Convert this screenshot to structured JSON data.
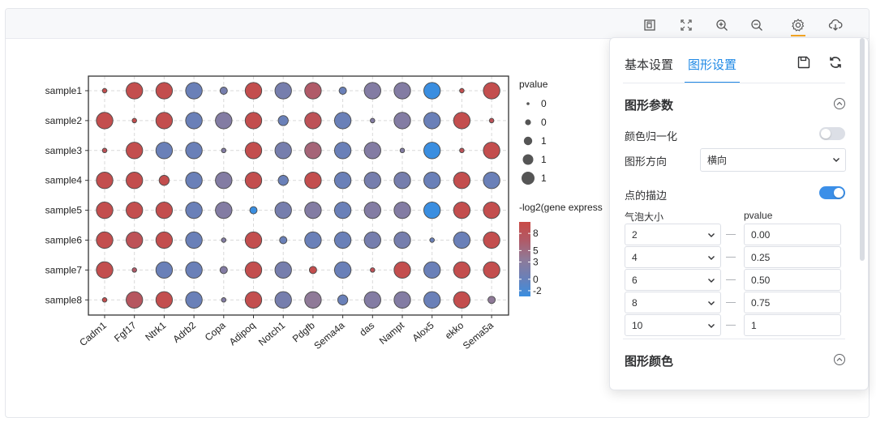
{
  "toolbar": {
    "icons": [
      "fit-view-icon",
      "fullscreen-icon",
      "zoom-in-icon",
      "zoom-out-icon",
      "gear-icon",
      "download-icon"
    ],
    "active": "gear-icon"
  },
  "chart_data": {
    "type": "scatter",
    "subtype": "bubble-matrix",
    "x_categories": [
      "Cadm1",
      "Fgf17",
      "Ntrk1",
      "Adrb2",
      "Copa",
      "Adipoq",
      "Notch1",
      "Pdgfb",
      "Sema4a",
      "das",
      "Nampt",
      "Alox5",
      "ekko",
      "Sema5a"
    ],
    "y_categories": [
      "sample1",
      "sample2",
      "sample3",
      "sample4",
      "sample5",
      "sample6",
      "sample7",
      "sample8"
    ],
    "size_legend": {
      "title": "pvalue",
      "labels": [
        "0",
        "0",
        "1",
        "1",
        "1"
      ],
      "sizes": [
        2,
        4,
        6,
        8,
        10
      ]
    },
    "color_legend": {
      "title": "-log2(gene express",
      "ticks": [
        "8",
        "5",
        "3",
        "0",
        "-2"
      ],
      "tick_values": [
        8,
        5,
        3,
        0,
        -2
      ],
      "range": [
        -3,
        10
      ],
      "colors": [
        "#3a8ee0",
        "#6a80b8",
        "#8f7a98",
        "#b05a68",
        "#c94a45"
      ]
    },
    "grid": true,
    "size_by_pvalue_bins": {
      "2": 0.0,
      "4": 0.25,
      "6": 0.5,
      "8": 0.75,
      "10": 1
    },
    "size_matrix": [
      [
        2,
        8,
        8,
        8,
        4,
        8,
        8,
        8,
        4,
        8,
        8,
        8,
        2,
        8
      ],
      [
        8,
        2,
        8,
        8,
        8,
        8,
        6,
        8,
        8,
        2,
        8,
        8,
        8,
        2
      ],
      [
        2,
        8,
        8,
        8,
        2,
        8,
        8,
        8,
        8,
        8,
        2,
        8,
        2,
        8
      ],
      [
        8,
        8,
        6,
        8,
        8,
        8,
        6,
        8,
        8,
        8,
        8,
        8,
        8,
        8
      ],
      [
        8,
        8,
        8,
        8,
        8,
        4,
        8,
        8,
        8,
        8,
        8,
        8,
        8,
        8
      ],
      [
        8,
        8,
        8,
        8,
        2,
        8,
        4,
        8,
        8,
        8,
        8,
        2,
        8,
        8
      ],
      [
        8,
        2,
        8,
        8,
        4,
        8,
        8,
        4,
        8,
        2,
        8,
        8,
        8,
        8
      ],
      [
        2,
        8,
        8,
        8,
        2,
        8,
        8,
        8,
        6,
        8,
        8,
        8,
        8,
        4
      ]
    ],
    "color_matrix": [
      [
        9,
        9,
        9,
        0,
        1,
        9,
        1,
        6,
        0,
        2,
        2,
        -3,
        9,
        9
      ],
      [
        9,
        9,
        9,
        0,
        2,
        9,
        0,
        8,
        0,
        2,
        2,
        0,
        9,
        8
      ],
      [
        8,
        9,
        0,
        0,
        2,
        9,
        1,
        5,
        0,
        2,
        2,
        -3,
        8,
        9
      ],
      [
        9,
        9,
        9,
        0,
        2,
        9,
        0,
        9,
        0,
        1,
        1,
        0,
        9,
        0
      ],
      [
        9,
        9,
        9,
        0,
        2,
        -3,
        1,
        2,
        0,
        2,
        2,
        -3,
        9,
        9
      ],
      [
        9,
        8,
        9,
        0,
        2,
        9,
        0,
        0,
        0,
        1,
        1,
        0,
        0,
        9
      ],
      [
        9,
        6,
        0,
        0,
        2,
        9,
        1,
        9,
        0,
        8,
        9,
        0,
        9,
        9
      ],
      [
        9,
        7,
        9,
        0,
        2,
        9,
        1,
        3,
        0,
        2,
        2,
        0,
        9,
        3
      ]
    ]
  },
  "panel": {
    "tabs": [
      {
        "label": "基本设置",
        "active": false
      },
      {
        "label": "图形设置",
        "active": true
      }
    ],
    "save_icon": "save-icon",
    "refresh_icon": "refresh-icon",
    "section1_title": "图形参数",
    "normalize_label": "颜色归一化",
    "normalize_on": false,
    "direction_label": "图形方向",
    "direction_value": "横向",
    "stroke_label": "点的描边",
    "stroke_on": true,
    "size_col_label": "气泡大小",
    "pvalue_col_label": "pvalue",
    "size_rows": [
      {
        "size": "2",
        "pvalue": "0.00"
      },
      {
        "size": "4",
        "pvalue": "0.25"
      },
      {
        "size": "6",
        "pvalue": "0.50"
      },
      {
        "size": "8",
        "pvalue": "0.75"
      },
      {
        "size": "10",
        "pvalue": "1"
      }
    ],
    "section2_title": "图形颜色"
  }
}
